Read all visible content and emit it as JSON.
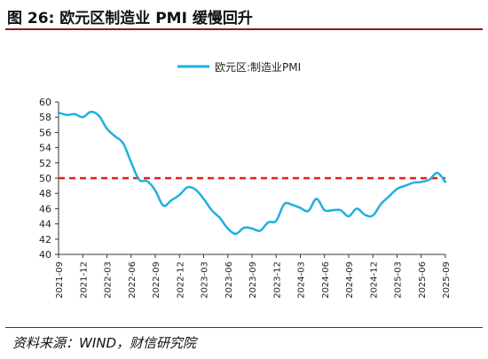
{
  "figure": {
    "title": "图 26:  欧元区制造业 PMI 缓慢回升",
    "source": "资料来源：WIND，财信研究院"
  },
  "colors": {
    "series": "#1fb0e0",
    "reference": "#e02020",
    "rule": "#8a1b1b"
  },
  "chart_data": {
    "type": "line",
    "title": "",
    "xlabel": "",
    "ylabel": "",
    "ylim": [
      40,
      60
    ],
    "yticks": [
      40,
      42,
      44,
      46,
      48,
      50,
      52,
      54,
      56,
      58,
      60
    ],
    "grid": false,
    "legend_position": "top-center",
    "x_tick_labels": [
      "2021-09",
      "2021-12",
      "2022-03",
      "2022-06",
      "2022-09",
      "2022-12",
      "2023-03",
      "2023-06",
      "2023-09",
      "2023-12",
      "2024-03",
      "2024-06",
      "2024-09",
      "2024-12",
      "2025-03",
      "2025-06",
      "2025-09"
    ],
    "reference_line": {
      "value": 50,
      "style": "dashed"
    },
    "series": [
      {
        "name": "欧元区:制造业PMI",
        "x": [
          "2021-09",
          "2021-10",
          "2021-11",
          "2021-12",
          "2022-01",
          "2022-02",
          "2022-03",
          "2022-04",
          "2022-05",
          "2022-06",
          "2022-07",
          "2022-08",
          "2022-09",
          "2022-10",
          "2022-11",
          "2022-12",
          "2023-01",
          "2023-02",
          "2023-03",
          "2023-04",
          "2023-05",
          "2023-06",
          "2023-07",
          "2023-08",
          "2023-09",
          "2023-10",
          "2023-11",
          "2023-12",
          "2024-01",
          "2024-02",
          "2024-03",
          "2024-04",
          "2024-05",
          "2024-06",
          "2024-07",
          "2024-08",
          "2024-09",
          "2024-10",
          "2024-11",
          "2024-12",
          "2025-01",
          "2025-02",
          "2025-03",
          "2025-04",
          "2025-05",
          "2025-06",
          "2025-07",
          "2025-08",
          "2025-09"
        ],
        "values": [
          58.6,
          58.3,
          58.4,
          58.0,
          58.7,
          58.2,
          56.5,
          55.5,
          54.6,
          52.1,
          49.8,
          49.6,
          48.4,
          46.4,
          47.1,
          47.8,
          48.8,
          48.5,
          47.3,
          45.8,
          44.8,
          43.4,
          42.7,
          43.5,
          43.4,
          43.1,
          44.2,
          44.4,
          46.6,
          46.5,
          46.1,
          45.7,
          47.3,
          45.8,
          45.8,
          45.8,
          45.0,
          46.0,
          45.2,
          45.1,
          46.6,
          47.6,
          48.6,
          49.0,
          49.4,
          49.5,
          49.8,
          50.7,
          49.5
        ]
      }
    ]
  }
}
